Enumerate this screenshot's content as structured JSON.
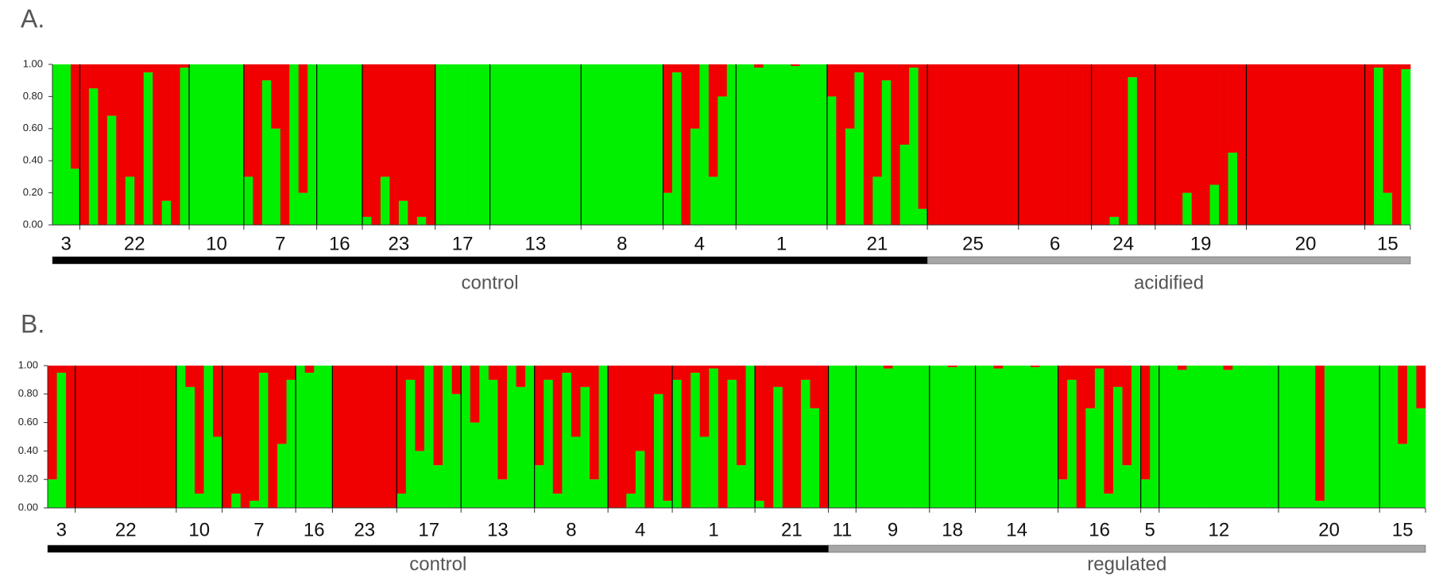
{
  "charts": [
    {
      "type": "structure",
      "panel": "A.",
      "colors": [
        "#00f000",
        "#f00000"
      ],
      "ylim": [
        0,
        1
      ],
      "yticks": [
        {
          "value": 0,
          "label": "0.00"
        },
        {
          "value": 0.2,
          "label": "0.20"
        },
        {
          "value": 0.4,
          "label": "0.40"
        },
        {
          "value": 0.6,
          "label": "0.60"
        },
        {
          "value": 0.8,
          "label": "0.80"
        },
        {
          "value": 1,
          "label": "1.00"
        }
      ],
      "groups": [
        {
          "label": "control",
          "color": "#000000",
          "populations": [
            {
              "label": "3",
              "values": [
                1,
                1,
                0.35
              ]
            },
            {
              "label": "22",
              "values": [
                0,
                0.85,
                0,
                0.68,
                0,
                0.3,
                0,
                0.95,
                0,
                0.15,
                0,
                0.98
              ]
            },
            {
              "label": "10",
              "values": [
                1,
                1,
                1,
                1,
                1,
                1
              ]
            },
            {
              "label": "7",
              "values": [
                0.3,
                0,
                0.9,
                0.6,
                0,
                1,
                0.2,
                1
              ]
            },
            {
              "label": "16",
              "values": [
                1,
                1,
                1,
                1,
                1
              ]
            },
            {
              "label": "23",
              "values": [
                0.05,
                0,
                0.3,
                0,
                0.15,
                0,
                0.05,
                0
              ]
            },
            {
              "label": "17",
              "values": [
                1,
                1,
                1,
                1,
                1,
                1
              ]
            },
            {
              "label": "13",
              "values": [
                1,
                1,
                1,
                1,
                1,
                1,
                1,
                1,
                1,
                1
              ]
            },
            {
              "label": "8",
              "values": [
                1,
                1,
                1,
                1,
                1,
                1,
                1,
                1,
                1
              ]
            },
            {
              "label": "4",
              "values": [
                0.2,
                0.95,
                0,
                0.6,
                1,
                0.3,
                0.8,
                1
              ]
            },
            {
              "label": "1",
              "values": [
                1,
                1,
                0.98,
                1,
                1,
                1,
                0.99,
                1,
                1,
                1
              ]
            },
            {
              "label": "21",
              "values": [
                0.8,
                0,
                0.6,
                0.95,
                0,
                0.3,
                0.9,
                0,
                0.5,
                0.98,
                0.1
              ]
            }
          ]
        },
        {
          "label": "acidified",
          "color": "#a6a6a6",
          "populations": [
            {
              "label": "25",
              "values": [
                0,
                0,
                0,
                0,
                0,
                0,
                0,
                0,
                0,
                0
              ]
            },
            {
              "label": "6",
              "values": [
                0,
                0,
                0,
                0,
                0,
                0,
                0,
                0
              ]
            },
            {
              "label": "24",
              "values": [
                0,
                0,
                0.05,
                0,
                0.92,
                0,
                0
              ]
            },
            {
              "label": "19",
              "values": [
                0,
                0,
                0,
                0.2,
                0,
                0,
                0.25,
                0,
                0.45,
                0
              ]
            },
            {
              "label": "20",
              "values": [
                0,
                0,
                0,
                0,
                0,
                0,
                0,
                0,
                0,
                0,
                0,
                0,
                0
              ]
            },
            {
              "label": "15",
              "values": [
                0,
                0.98,
                0.2,
                0,
                0.97
              ]
            }
          ]
        }
      ]
    },
    {
      "type": "structure",
      "panel": "B.",
      "colors": [
        "#00f000",
        "#f00000"
      ],
      "ylim": [
        0,
        1
      ],
      "yticks": [
        {
          "value": 0,
          "label": "0.00"
        },
        {
          "value": 0.2,
          "label": "0.20"
        },
        {
          "value": 0.4,
          "label": "0.40"
        },
        {
          "value": 0.6,
          "label": "0.60"
        },
        {
          "value": 0.8,
          "label": "0.80"
        },
        {
          "value": 1,
          "label": "1.00"
        }
      ],
      "groups": [
        {
          "label": "control",
          "color": "#000000",
          "populations": [
            {
              "label": "3",
              "values": [
                0.2,
                0.95,
                0
              ]
            },
            {
              "label": "22",
              "values": [
                0,
                0,
                0,
                0,
                0,
                0,
                0,
                0,
                0,
                0,
                0
              ]
            },
            {
              "label": "10",
              "values": [
                1,
                0.85,
                0.1,
                1,
                0.5
              ]
            },
            {
              "label": "7",
              "values": [
                0,
                0.1,
                0,
                0.05,
                0.95,
                0,
                0.45,
                0.9
              ]
            },
            {
              "label": "16",
              "values": [
                1,
                0.95,
                1,
                1
              ]
            },
            {
              "label": "23",
              "values": [
                0,
                0,
                0,
                0,
                0,
                0,
                0
              ]
            },
            {
              "label": "17",
              "values": [
                0.1,
                0.9,
                0.4,
                1,
                0.3,
                1,
                0.8
              ]
            },
            {
              "label": "13",
              "values": [
                1,
                0.6,
                1,
                0.9,
                0.2,
                1,
                0.85,
                1
              ]
            },
            {
              "label": "8",
              "values": [
                0.3,
                0.9,
                0.1,
                0.95,
                0.5,
                0.85,
                0.2,
                1
              ]
            },
            {
              "label": "4",
              "values": [
                0,
                0,
                0.1,
                0.4,
                0,
                0.8,
                0.05
              ]
            },
            {
              "label": "1",
              "values": [
                0.9,
                0,
                0.95,
                0.5,
                0.98,
                0,
                0.9,
                0.3,
                1
              ]
            },
            {
              "label": "21",
              "values": [
                0.05,
                0,
                0.85,
                0,
                0,
                0.9,
                0.7,
                0
              ]
            }
          ]
        },
        {
          "label": "regulated",
          "color": "#a6a6a6",
          "populations": [
            {
              "label": "11",
              "values": [
                1,
                1,
                1
              ]
            },
            {
              "label": "9",
              "values": [
                1,
                1,
                1,
                0.98,
                1,
                1,
                1,
                1
              ]
            },
            {
              "label": "18",
              "values": [
                1,
                1,
                0.99,
                1,
                1
              ]
            },
            {
              "label": "14",
              "values": [
                1,
                1,
                0.98,
                1,
                1,
                1,
                0.99,
                1,
                1
              ]
            },
            {
              "label": "16",
              "values": [
                0.2,
                0.9,
                0,
                0.7,
                0.98,
                0.1,
                0.85,
                0.3,
                1
              ]
            },
            {
              "label": "5",
              "values": [
                0.2,
                1
              ]
            },
            {
              "label": "12",
              "values": [
                1,
                1,
                0.97,
                1,
                1,
                1,
                1,
                0.97,
                1,
                1,
                1,
                1,
                1
              ]
            },
            {
              "label": "20",
              "values": [
                1,
                1,
                1,
                1,
                0.05,
                1,
                1,
                1,
                1,
                1,
                1
              ]
            },
            {
              "label": "15",
              "values": [
                1,
                1,
                0.45,
                1,
                0.7
              ]
            }
          ]
        }
      ]
    }
  ]
}
